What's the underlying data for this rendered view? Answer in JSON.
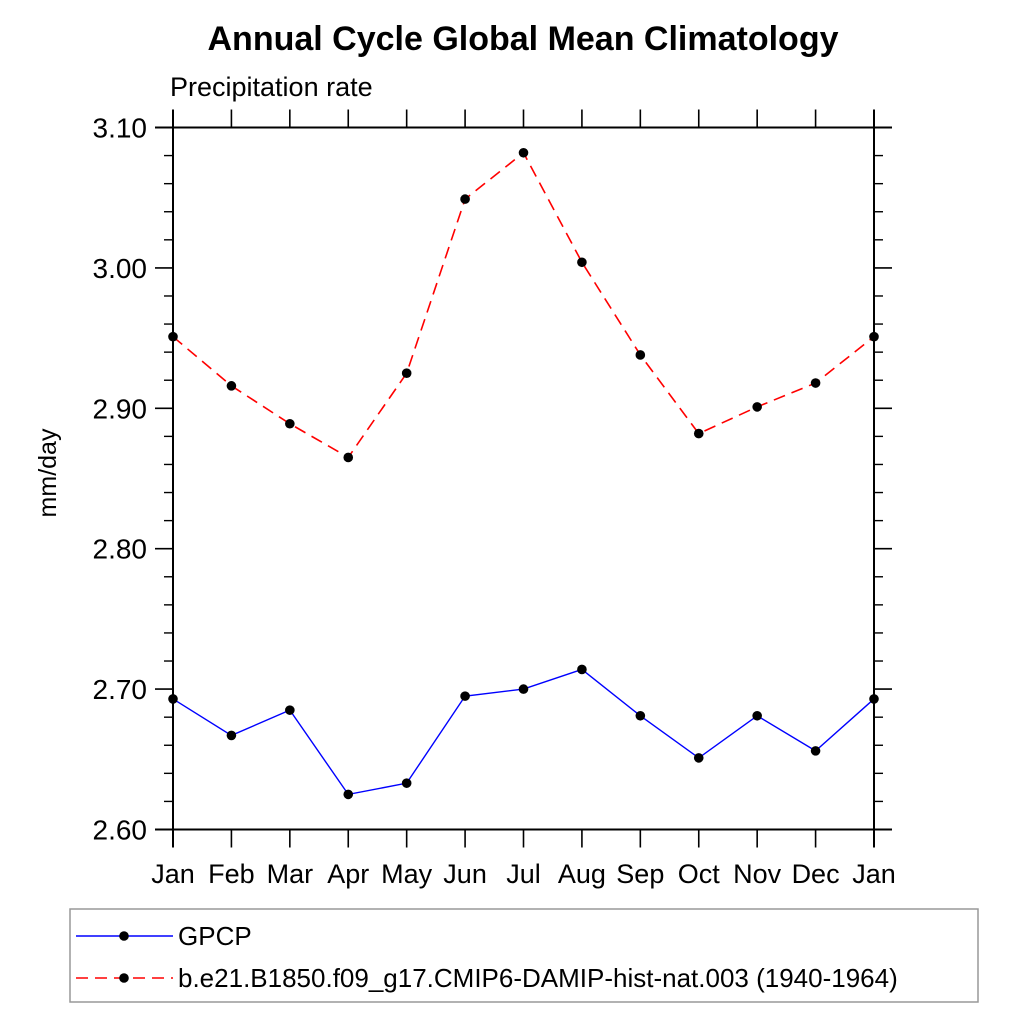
{
  "chart_data": {
    "type": "line",
    "title": "Annual Cycle Global Mean Climatology",
    "subtitle": "Precipitation rate",
    "ylabel": "mm/day",
    "xlabel": "",
    "categories": [
      "Jan",
      "Feb",
      "Mar",
      "Apr",
      "May",
      "Jun",
      "Jul",
      "Aug",
      "Sep",
      "Oct",
      "Nov",
      "Dec",
      "Jan"
    ],
    "ylim": [
      2.6,
      3.1
    ],
    "ytick_major": 0.1,
    "ytick_minor": 0.02,
    "yticks": [
      {
        "value": 2.6,
        "label": "2.60"
      },
      {
        "value": 2.7,
        "label": "2.70"
      },
      {
        "value": 2.8,
        "label": "2.80"
      },
      {
        "value": 2.9,
        "label": "2.90"
      },
      {
        "value": 3.0,
        "label": "3.00"
      },
      {
        "value": 3.1,
        "label": "3.10"
      }
    ],
    "grid": false,
    "legend_position": "bottom-box",
    "series": [
      {
        "name": "GPCP",
        "color": "#0000ff",
        "line_style": "solid",
        "dash": "",
        "width": 1.4,
        "marker": "circle",
        "marker_color": "#000000",
        "values": [
          2.693,
          2.667,
          2.685,
          2.625,
          2.633,
          2.695,
          2.7,
          2.714,
          2.681,
          2.651,
          2.681,
          2.656,
          2.693
        ]
      },
      {
        "name": "b.e21.B1850.f09_g17.CMIP6-DAMIP-hist-nat.003 (1940-1964)",
        "color": "#ff0000",
        "line_style": "dashed",
        "dash": "12 7",
        "width": 1.6,
        "marker": "circle",
        "marker_color": "#000000",
        "values": [
          2.951,
          2.916,
          2.889,
          2.865,
          2.925,
          3.049,
          3.082,
          3.004,
          2.938,
          2.882,
          2.901,
          2.918,
          2.951
        ]
      }
    ]
  }
}
